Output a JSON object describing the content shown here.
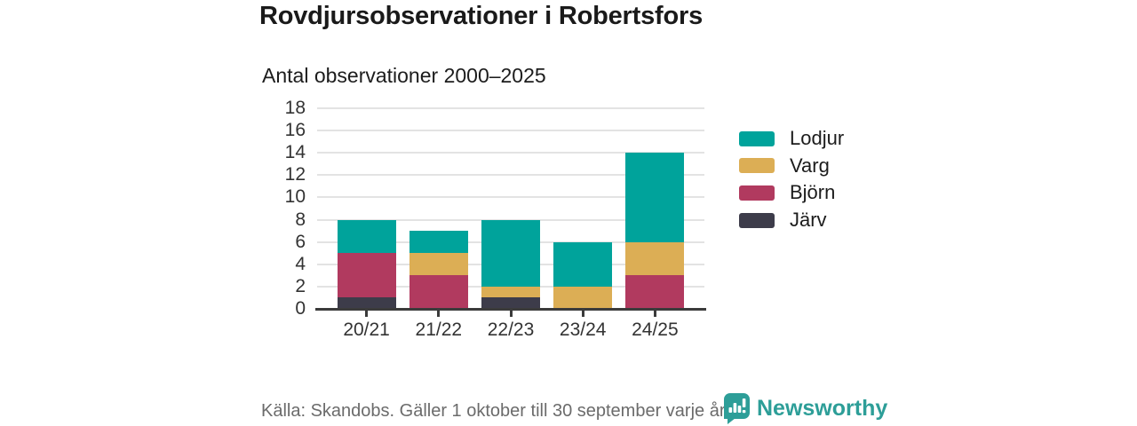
{
  "header": {
    "title": "Rovdjursobservationer i Robertsfors",
    "subtitle": "Antal observationer 2000–2025"
  },
  "chart_data": {
    "type": "bar",
    "stacked": true,
    "title": "Rovdjursobservationer i Robertsfors",
    "subtitle": "Antal observationer 2000–2025",
    "categories": [
      "20/21",
      "21/22",
      "22/23",
      "23/24",
      "24/25"
    ],
    "series": [
      {
        "name": "Järv",
        "color": "#3d3c4a",
        "values": [
          1,
          0,
          1,
          0,
          0
        ]
      },
      {
        "name": "Björn",
        "color": "#b13a5f",
        "values": [
          4,
          3,
          0,
          0,
          3
        ]
      },
      {
        "name": "Varg",
        "color": "#dcae55",
        "values": [
          0,
          2,
          1,
          2,
          3
        ]
      },
      {
        "name": "Lodjur",
        "color": "#00a39b",
        "values": [
          3,
          2,
          6,
          4,
          8
        ]
      }
    ],
    "stack_totals": [
      8,
      7,
      8,
      6,
      14
    ],
    "xlabel": "",
    "ylabel": "",
    "ylim": [
      0,
      18
    ],
    "yticks": [
      0,
      2,
      4,
      6,
      8,
      10,
      12,
      14,
      16,
      18
    ],
    "grid": true,
    "legend_position": "right",
    "legend_order_top_to_bottom": [
      "Lodjur",
      "Varg",
      "Björn",
      "Järv"
    ]
  },
  "legend": {
    "items": [
      {
        "label": "Lodjur",
        "color": "#00a39b"
      },
      {
        "label": "Varg",
        "color": "#dcae55"
      },
      {
        "label": "Björn",
        "color": "#b13a5f"
      },
      {
        "label": "Järv",
        "color": "#3d3c4a"
      }
    ]
  },
  "footer": {
    "source": "Källa: Skandobs. Gäller 1 oktober till 30 september varje år.",
    "brand": "Newsworthy",
    "brand_color": "#2d9e98",
    "logo_icon": "speech-bubble-bar-chart-icon"
  }
}
